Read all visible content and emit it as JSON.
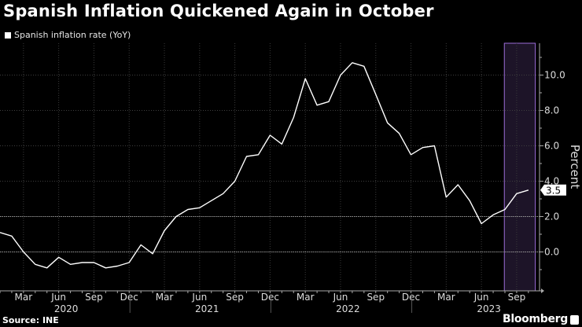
{
  "chart_data": {
    "type": "line",
    "title": "Spanish Inflation Quickened Again in October",
    "series": [
      {
        "name": "Spanish inflation rate (YoY)",
        "color": "#ffffff",
        "start": "2020-01",
        "values": [
          1.1,
          0.9,
          0.0,
          -0.7,
          -0.9,
          -0.3,
          -0.7,
          -0.6,
          -0.6,
          -0.9,
          -0.8,
          -0.6,
          0.4,
          -0.1,
          1.2,
          2.0,
          2.4,
          2.5,
          2.9,
          3.3,
          4.0,
          5.4,
          5.5,
          6.6,
          6.1,
          7.6,
          9.8,
          8.3,
          8.5,
          10.0,
          10.7,
          10.5,
          8.9,
          7.3,
          6.7,
          5.5,
          5.9,
          6.0,
          3.1,
          3.8,
          2.9,
          1.6,
          2.1,
          2.4,
          3.3,
          3.5
        ]
      }
    ],
    "last_value_label": "3.5",
    "ylabel": "Percent",
    "ylim": [
      -2.2,
      11.8
    ],
    "yticks": [
      0,
      2,
      4,
      6,
      8,
      10
    ],
    "ytick_labels": [
      "0.0",
      "2.0",
      "4.0",
      "6.0",
      "8.0",
      "10.0"
    ],
    "xtick_labels": [
      {
        "label": "Mar",
        "index": 2
      },
      {
        "label": "Jun",
        "index": 5
      },
      {
        "label": "Sep",
        "index": 8
      },
      {
        "label": "Dec",
        "index": 11
      },
      {
        "label": "Mar",
        "index": 14
      },
      {
        "label": "Jun",
        "index": 17
      },
      {
        "label": "Sep",
        "index": 20
      },
      {
        "label": "Dec",
        "index": 23
      },
      {
        "label": "Mar",
        "index": 26
      },
      {
        "label": "Jun",
        "index": 29
      },
      {
        "label": "Sep",
        "index": 32
      },
      {
        "label": "Dec",
        "index": 35
      },
      {
        "label": "Mar",
        "index": 38
      },
      {
        "label": "Jun",
        "index": 41
      },
      {
        "label": "Sep",
        "index": 44
      }
    ],
    "year_labels": [
      {
        "label": "2020",
        "center": 5.5
      },
      {
        "label": "2021",
        "center": 17.5
      },
      {
        "label": "2022",
        "center": 29.5
      },
      {
        "label": "2023",
        "center": 41.5
      }
    ],
    "highlight_range": {
      "from_index": 43,
      "to_index": 45,
      "color": "#9a6cd8"
    },
    "grid": true,
    "legend_position": "top-left"
  },
  "source": "Source: INE",
  "brand": "Bloomberg"
}
